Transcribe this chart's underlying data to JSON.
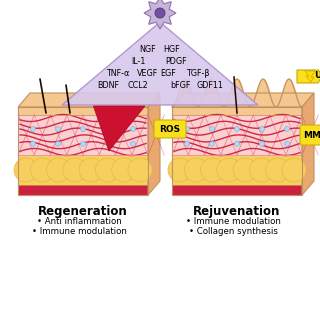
{
  "background_color": "#ffffff",
  "cell_color": "#c8b4d8",
  "cell_outline_color": "#9070b0",
  "triangle_color": "#d8c8ec",
  "triangle_edge_color": "#b090cc",
  "labels_left": [
    [
      "NGF",
      148,
      270
    ],
    [
      "IL-1",
      138,
      258
    ],
    [
      "TNF-α",
      118,
      246
    ],
    [
      "VEGF",
      148,
      246
    ],
    [
      "BDNF",
      108,
      234
    ],
    [
      "CCL2",
      138,
      234
    ]
  ],
  "labels_right": [
    [
      "HGF",
      172,
      270
    ],
    [
      "PDGF",
      176,
      258
    ],
    [
      "EGF",
      168,
      246
    ],
    [
      "TGF-β",
      198,
      246
    ],
    [
      "bFGF",
      180,
      234
    ],
    [
      "GDF11",
      210,
      234
    ]
  ],
  "skin_peach": "#f5c890",
  "skin_pink": "#f5b0b0",
  "skin_pink_light": "#fad0d0",
  "skin_red": "#cc2040",
  "skin_yellow": "#f5d060",
  "skin_dark_yellow": "#e8b840",
  "wound_red": "#cc1030",
  "wound_dark": "#aa0820",
  "vessel_red": "#cc2040",
  "hair_color": "#1a0800",
  "blue_dot_color": "#b0d8f8",
  "blue_dot_edge": "#80aacc",
  "uv_yellow": "#f8e020",
  "uv_edge": "#c8aa00",
  "ros_yellow": "#f8e020",
  "mmp_yellow": "#f8e020",
  "regen_title": "Regeneration",
  "rejuv_title": "Rejuvenation",
  "regen_bullets": [
    "Anti inflammation",
    "Immune modulation"
  ],
  "rejuv_bullets": [
    "Immune modulation",
    "Collagen synthesis"
  ],
  "title_fontsize": 8.5,
  "bullet_fontsize": 6.2,
  "label_fontsize": 5.8
}
